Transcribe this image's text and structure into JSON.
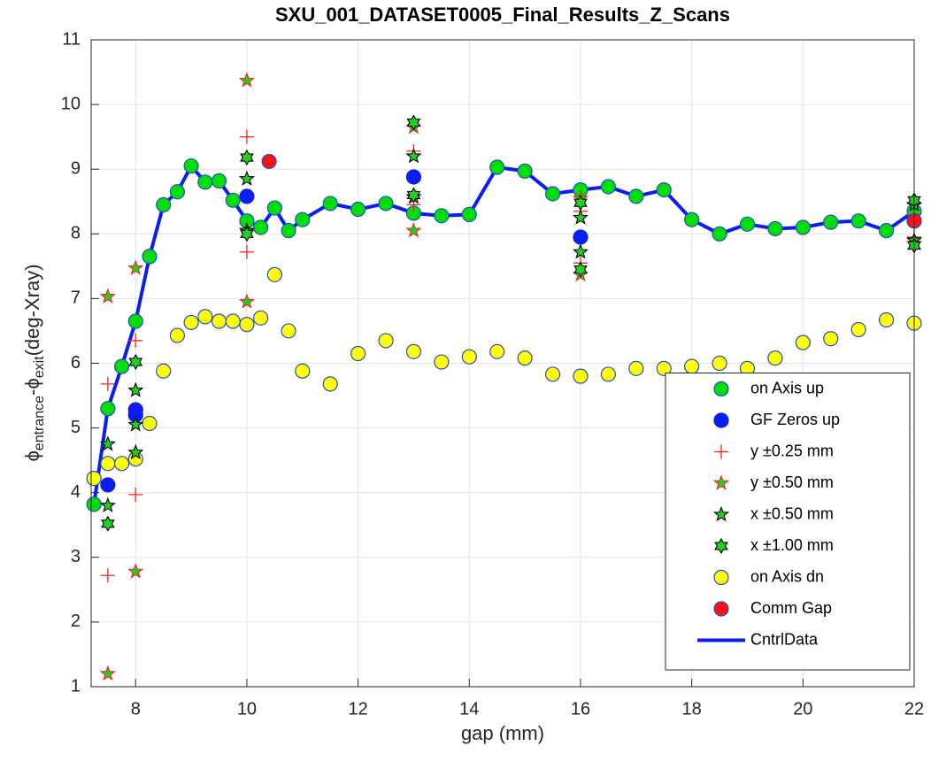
{
  "chart_data": {
    "type": "scatter",
    "title": "SXU_001_DATASET0005_Final_Results_Z_Scans",
    "xlabel": "gap (mm)",
    "ylabel": [
      "ϕ",
      "entrance",
      "-ϕ",
      "exit",
      "(deg-Xray)"
    ],
    "xlim": [
      7.2,
      22
    ],
    "xticks": [
      8,
      10,
      12,
      14,
      16,
      18,
      20,
      22
    ],
    "ylim": [
      1,
      11
    ],
    "yticks": [
      1,
      2,
      3,
      4,
      5,
      6,
      7,
      8,
      9,
      10,
      11
    ],
    "grid": true,
    "legend": "lower right",
    "series": [
      {
        "name": "on Axis up",
        "marker": "circle",
        "color": "#00e000",
        "edge": "#1f4fd0",
        "x": [
          7.25,
          7.5,
          7.75,
          8,
          8.25,
          8.5,
          8.75,
          9,
          9.25,
          9.5,
          9.75,
          10,
          10.25,
          10.5,
          10.75,
          11,
          11.5,
          12,
          12.5,
          13,
          13.5,
          14,
          14.5,
          15,
          15.5,
          16,
          16.5,
          17,
          17.5,
          18,
          18.5,
          19,
          19.5,
          20,
          20.5,
          21,
          21.5,
          22
        ],
        "values": [
          3.82,
          5.3,
          5.95,
          6.65,
          7.65,
          8.45,
          8.65,
          9.05,
          8.8,
          8.82,
          8.52,
          8.2,
          8.1,
          8.4,
          8.05,
          8.22,
          8.47,
          8.38,
          8.47,
          8.32,
          8.28,
          8.3,
          9.03,
          8.97,
          8.62,
          8.68,
          8.73,
          8.58,
          8.68,
          8.22,
          8.0,
          8.15,
          8.08,
          8.1,
          8.18,
          8.2,
          8.05,
          8.35
        ]
      },
      {
        "name": "GF Zeros up",
        "marker": "circle",
        "color": "#0a1ef0",
        "edge": "#0a1ef0",
        "x": [
          7.5,
          8,
          8,
          10,
          13,
          16,
          22
        ],
        "values": [
          4.12,
          5.28,
          5.2,
          8.58,
          8.88,
          7.95,
          8.2
        ]
      },
      {
        "name": "y ±0.25 mm",
        "marker": "plus",
        "color": "#ff2020",
        "edge": "#ff2020",
        "x": [
          7.5,
          7.5,
          8,
          8,
          10,
          10,
          13,
          13,
          16,
          16,
          22,
          22
        ],
        "values": [
          5.68,
          2.72,
          6.35,
          3.97,
          9.5,
          7.72,
          9.28,
          8.45,
          8.35,
          7.55,
          8.3,
          7.95
        ]
      },
      {
        "name": "y ±0.50 mm",
        "marker": "star",
        "color": "#20d020",
        "edge": "#ff2020",
        "x": [
          7.5,
          7.5,
          8,
          8,
          10,
          10,
          13,
          13,
          16,
          16,
          22,
          22
        ],
        "values": [
          7.03,
          1.2,
          7.47,
          2.78,
          10.37,
          6.95,
          9.65,
          8.05,
          8.55,
          7.37,
          8.45,
          7.85
        ]
      },
      {
        "name": "x ±0.50 mm",
        "marker": "star",
        "color": "#20d020",
        "edge": "#000000",
        "x": [
          7.5,
          7.5,
          8,
          8,
          8,
          10,
          10,
          13,
          13,
          16,
          16,
          22,
          22
        ],
        "values": [
          4.75,
          3.8,
          5.58,
          5.05,
          4.62,
          8.85,
          8.05,
          9.2,
          8.57,
          7.72,
          8.25,
          8.45,
          7.9
        ]
      },
      {
        "name": "x ±1.00 mm",
        "marker": "hexagram",
        "color": "#20d020",
        "edge": "#000000",
        "x": [
          7.5,
          8,
          10,
          10,
          13,
          13,
          16,
          16,
          22,
          22
        ],
        "values": [
          3.52,
          6.02,
          9.18,
          8.0,
          9.72,
          8.6,
          8.48,
          7.45,
          8.52,
          7.82
        ]
      },
      {
        "name": "on Axis dn",
        "marker": "circle",
        "color": "#ffff00",
        "edge": "#1f4fd0",
        "x": [
          7.25,
          7.5,
          7.75,
          8,
          8.25,
          8.5,
          8.75,
          9,
          9.25,
          9.5,
          9.75,
          10,
          10.25,
          10.5,
          10.75,
          11,
          11.5,
          12,
          12.5,
          13,
          13.5,
          14,
          14.5,
          15,
          15.5,
          16,
          16.5,
          17,
          17.5,
          18,
          18.5,
          19,
          19.5,
          20,
          20.5,
          21,
          21.5,
          22
        ],
        "values": [
          4.22,
          4.45,
          4.45,
          4.52,
          5.07,
          5.88,
          6.43,
          6.63,
          6.72,
          6.65,
          6.65,
          6.6,
          6.7,
          7.37,
          6.5,
          5.88,
          5.68,
          6.15,
          6.35,
          6.18,
          6.02,
          6.1,
          6.18,
          6.08,
          5.83,
          5.8,
          5.83,
          5.92,
          5.92,
          5.95,
          6.0,
          5.92,
          6.08,
          6.32,
          6.38,
          6.52,
          6.67,
          6.62
        ]
      },
      {
        "name": "Comm Gap",
        "marker": "circle",
        "color": "#ff1010",
        "edge": "#1f4fd0",
        "x": [
          10.4,
          22
        ],
        "values": [
          9.12,
          8.2
        ]
      },
      {
        "name": "CntrlData",
        "marker": "line",
        "color": "#0a1ef0",
        "edge": "#0a1ef0",
        "x": [
          7.25,
          7.5,
          7.75,
          8,
          8.25,
          8.5,
          8.75,
          9,
          9.25,
          9.5,
          9.75,
          10,
          10.25,
          10.5,
          10.75,
          11,
          11.5,
          12,
          12.5,
          13,
          13.5,
          14,
          14.5,
          15,
          15.5,
          16,
          16.5,
          17,
          17.5,
          18,
          18.5,
          19,
          19.5,
          20,
          20.5,
          21,
          21.5,
          22
        ],
        "values": [
          3.82,
          5.3,
          5.95,
          6.65,
          7.65,
          8.45,
          8.65,
          9.05,
          8.8,
          8.82,
          8.52,
          8.2,
          8.1,
          8.4,
          8.05,
          8.22,
          8.47,
          8.38,
          8.47,
          8.32,
          8.28,
          8.3,
          9.03,
          8.97,
          8.62,
          8.68,
          8.73,
          8.58,
          8.68,
          8.22,
          8.0,
          8.15,
          8.08,
          8.1,
          8.18,
          8.2,
          8.05,
          8.35
        ]
      }
    ]
  }
}
